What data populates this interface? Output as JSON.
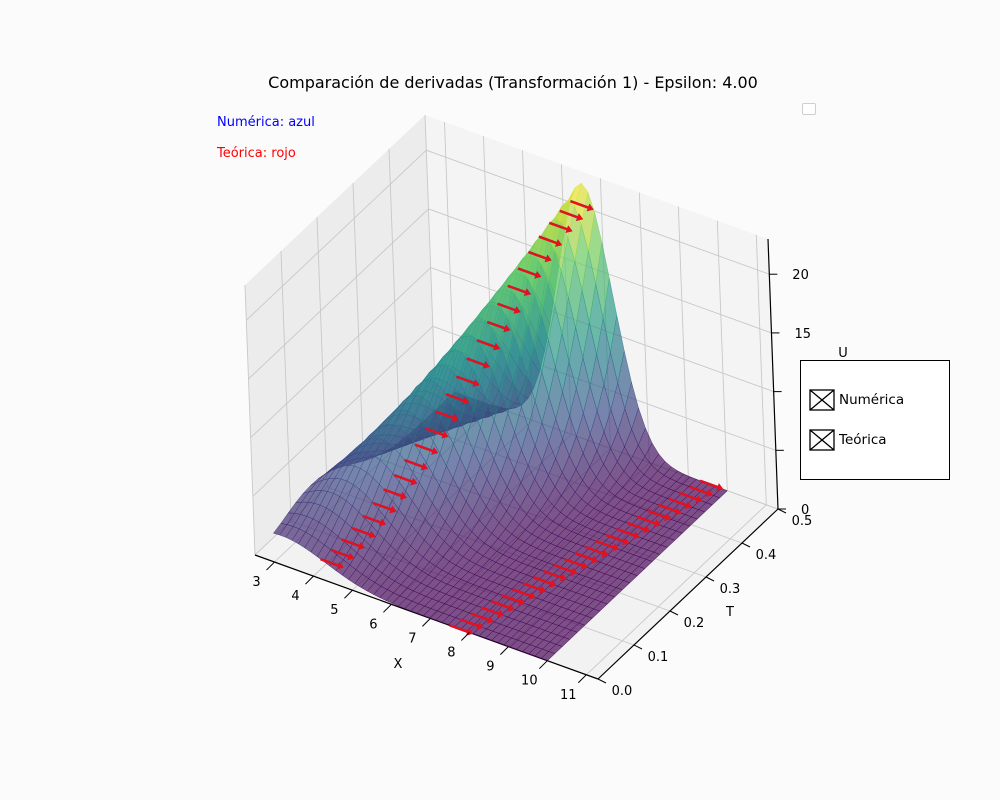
{
  "chart_data": {
    "type": "surface3d",
    "title": "Comparación de derivadas (Transformación 1) - Epsilon: 4.00",
    "xlabel": "X",
    "ylabel": "T",
    "zlabel": "U",
    "xlim": [
      2.5,
      11.3
    ],
    "ylim": [
      0.0,
      0.5
    ],
    "zlim": [
      0,
      23
    ],
    "x_ticks": [
      "3",
      "4",
      "5",
      "6",
      "7",
      "8",
      "9",
      "10",
      "11"
    ],
    "y_ticks": [
      "0.0",
      "0.1",
      "0.2",
      "0.3",
      "0.4",
      "0.5"
    ],
    "z_ticks": [
      "0",
      "15",
      "20"
    ],
    "colormap": "viridis",
    "series": [
      {
        "name": "Numérica",
        "color": "#1f3fbf"
      },
      {
        "name": "Teórica",
        "color": "#e8101a"
      }
    ]
  },
  "annotations": {
    "numerica": {
      "text": "Numérica: azul",
      "color": "#0000ff"
    },
    "teorica": {
      "text": "Teórica: rojo",
      "color": "#ff0000"
    }
  },
  "legend": {
    "items": [
      {
        "label": "Numérica"
      },
      {
        "label": "Teórica"
      }
    ]
  }
}
